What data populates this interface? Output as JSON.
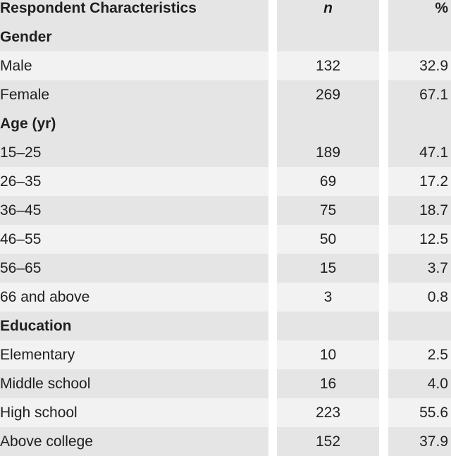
{
  "header": {
    "col1": "Respondent Characteristics",
    "col2": "n",
    "col3": "%"
  },
  "rows": [
    {
      "type": "section",
      "label": "Gender",
      "n": "",
      "pct": ""
    },
    {
      "type": "data",
      "label": "Male",
      "n": "132",
      "pct": "32.9"
    },
    {
      "type": "data",
      "label": "Female",
      "n": "269",
      "pct": "67.1"
    },
    {
      "type": "section",
      "label": "Age (yr)",
      "n": "",
      "pct": ""
    },
    {
      "type": "data",
      "label": "15–25",
      "n": "189",
      "pct": "47.1"
    },
    {
      "type": "data",
      "label": "26–35",
      "n": "69",
      "pct": "17.2"
    },
    {
      "type": "data",
      "label": "36–45",
      "n": "75",
      "pct": "18.7"
    },
    {
      "type": "data",
      "label": "46–55",
      "n": "50",
      "pct": "12.5"
    },
    {
      "type": "data",
      "label": "56–65",
      "n": "15",
      "pct": "3.7"
    },
    {
      "type": "data",
      "label": "66 and above",
      "n": "3",
      "pct": "0.8"
    },
    {
      "type": "section",
      "label": "Education",
      "n": "",
      "pct": ""
    },
    {
      "type": "data",
      "label": "Elementary",
      "n": "10",
      "pct": "2.5"
    },
    {
      "type": "data",
      "label": "Middle school",
      "n": "16",
      "pct": "4.0"
    },
    {
      "type": "data",
      "label": "High school",
      "n": "223",
      "pct": "55.6"
    },
    {
      "type": "data",
      "label": "Above college",
      "n": "152",
      "pct": "37.9"
    }
  ]
}
